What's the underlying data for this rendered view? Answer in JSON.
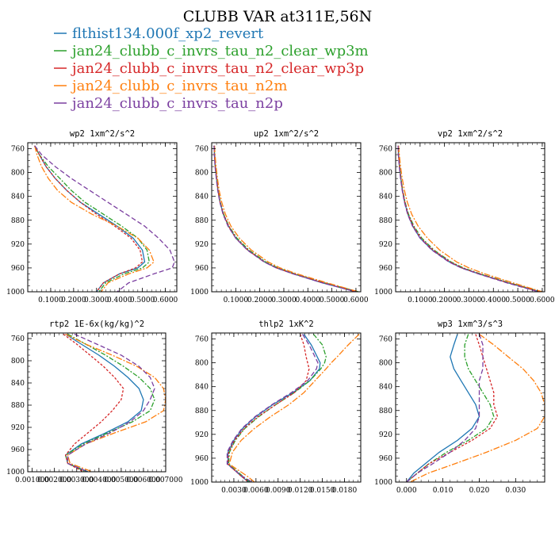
{
  "title": "CLUBB VAR at311E,56N",
  "colors": [
    "#1f77b4",
    "#2ca02c",
    "#d62728",
    "#ff7f0e",
    "#7b3fa0"
  ],
  "legend": [
    {
      "label": "flthist134.000f_xp2_revert",
      "color": "#1f77b4",
      "dash": ""
    },
    {
      "label": "jan24_clubb_c_invrs_tau_n2_clear_wp3m",
      "color": "#2ca02c",
      "dash": "6,2,2,2"
    },
    {
      "label": "jan24_clubb_c_invrs_tau_n2_clear_wp3p",
      "color": "#d62728",
      "dash": "3,2"
    },
    {
      "label": "jan24_clubb_c_invrs_tau_n2m",
      "color": "#ff7f0e",
      "dash": "8,2,2,2"
    },
    {
      "label": "jan24_clubb_c_invrs_tau_n2p",
      "color": "#7b3fa0",
      "dash": "6,3"
    }
  ],
  "chart_data": [
    {
      "type": "line",
      "title": "wp2  1xm^2/s^2",
      "xlim": [
        0,
        0.65
      ],
      "ylim": [
        1000,
        750
      ],
      "grid": false,
      "xticks": [
        "0.1000",
        "0.2000",
        "0.3000",
        "0.4000",
        "0.5000",
        "0.6000"
      ],
      "xtick_values": [
        0.1,
        0.2,
        0.3,
        0.4,
        0.5,
        0.6
      ],
      "yticks": [
        760,
        800,
        840,
        880,
        920,
        960,
        1000
      ],
      "y": [
        755,
        770,
        790,
        810,
        830,
        850,
        870,
        890,
        910,
        930,
        950,
        960,
        970,
        985,
        1000
      ],
      "series": [
        {
          "name": "flthist134.000f_xp2_revert",
          "values": [
            0.03,
            0.05,
            0.08,
            0.12,
            0.17,
            0.23,
            0.31,
            0.39,
            0.46,
            0.5,
            0.51,
            0.48,
            0.4,
            0.33,
            0.3
          ]
        },
        {
          "name": "jan24_clubb_c_invrs_tau_n2_clear_wp3m",
          "values": [
            0.03,
            0.05,
            0.09,
            0.14,
            0.19,
            0.25,
            0.33,
            0.41,
            0.48,
            0.52,
            0.53,
            0.5,
            0.42,
            0.34,
            0.31
          ]
        },
        {
          "name": "jan24_clubb_c_invrs_tau_n2_clear_wp3p",
          "values": [
            0.03,
            0.05,
            0.08,
            0.12,
            0.17,
            0.23,
            0.3,
            0.38,
            0.45,
            0.49,
            0.5,
            0.47,
            0.4,
            0.33,
            0.3
          ]
        },
        {
          "name": "jan24_clubb_c_invrs_tau_n2m",
          "values": [
            0.03,
            0.04,
            0.06,
            0.09,
            0.13,
            0.19,
            0.28,
            0.39,
            0.48,
            0.53,
            0.55,
            0.52,
            0.44,
            0.35,
            0.32
          ]
        },
        {
          "name": "jan24_clubb_c_invrs_tau_n2p",
          "values": [
            0.03,
            0.06,
            0.12,
            0.19,
            0.27,
            0.35,
            0.43,
            0.51,
            0.57,
            0.62,
            0.64,
            0.63,
            0.55,
            0.44,
            0.39
          ]
        }
      ]
    },
    {
      "type": "line",
      "title": "up2  1xm^2/s^2",
      "xlim": [
        0,
        0.62
      ],
      "ylim": [
        1000,
        750
      ],
      "grid": false,
      "xticks": [
        "0.1000",
        "0.2000",
        "0.3000",
        "0.4000",
        "0.5000",
        "0.6000"
      ],
      "xtick_values": [
        0.1,
        0.2,
        0.3,
        0.4,
        0.5,
        0.6
      ],
      "yticks": [
        760,
        800,
        840,
        880,
        920,
        960,
        1000
      ],
      "y": [
        755,
        770,
        790,
        810,
        830,
        850,
        870,
        890,
        910,
        930,
        950,
        960,
        970,
        985,
        1000
      ],
      "series": [
        {
          "name": "flthist134.000f_xp2_revert",
          "values": [
            0.01,
            0.012,
            0.015,
            0.02,
            0.026,
            0.035,
            0.048,
            0.07,
            0.1,
            0.15,
            0.22,
            0.27,
            0.34,
            0.46,
            0.6
          ]
        },
        {
          "name": "jan24_clubb_c_invrs_tau_n2_clear_wp3m",
          "values": [
            0.01,
            0.012,
            0.015,
            0.02,
            0.027,
            0.036,
            0.05,
            0.072,
            0.105,
            0.155,
            0.225,
            0.275,
            0.345,
            0.47,
            0.61
          ]
        },
        {
          "name": "jan24_clubb_c_invrs_tau_n2_clear_wp3p",
          "values": [
            0.01,
            0.012,
            0.015,
            0.02,
            0.026,
            0.035,
            0.049,
            0.071,
            0.1,
            0.15,
            0.22,
            0.27,
            0.34,
            0.465,
            0.6
          ]
        },
        {
          "name": "jan24_clubb_c_invrs_tau_n2m",
          "values": [
            0.012,
            0.014,
            0.018,
            0.024,
            0.031,
            0.042,
            0.057,
            0.08,
            0.115,
            0.165,
            0.235,
            0.285,
            0.355,
            0.48,
            0.61
          ]
        },
        {
          "name": "jan24_clubb_c_invrs_tau_n2p",
          "values": [
            0.01,
            0.011,
            0.014,
            0.019,
            0.025,
            0.034,
            0.047,
            0.068,
            0.1,
            0.148,
            0.218,
            0.268,
            0.338,
            0.46,
            0.6
          ]
        }
      ]
    },
    {
      "type": "line",
      "title": "vp2  1xm^2/s^2",
      "xlim": [
        0,
        0.61
      ],
      "ylim": [
        1000,
        750
      ],
      "grid": false,
      "xticks": [
        "0.1000",
        "0.2000",
        "0.3000",
        "0.4000",
        "0.5000",
        "0.6000"
      ],
      "xtick_values": [
        0.1,
        0.2,
        0.3,
        0.4,
        0.5,
        0.6
      ],
      "yticks": [
        760,
        800,
        840,
        880,
        920,
        960,
        1000
      ],
      "y": [
        755,
        770,
        790,
        810,
        830,
        850,
        870,
        890,
        910,
        930,
        950,
        960,
        970,
        985,
        1000
      ],
      "series": [
        {
          "name": "flthist134.000f_xp2_revert",
          "values": [
            0.01,
            0.012,
            0.016,
            0.021,
            0.028,
            0.037,
            0.05,
            0.07,
            0.1,
            0.15,
            0.22,
            0.27,
            0.34,
            0.46,
            0.59
          ]
        },
        {
          "name": "jan24_clubb_c_invrs_tau_n2_clear_wp3m",
          "values": [
            0.01,
            0.012,
            0.016,
            0.022,
            0.029,
            0.039,
            0.053,
            0.075,
            0.107,
            0.157,
            0.227,
            0.277,
            0.347,
            0.465,
            0.595
          ]
        },
        {
          "name": "jan24_clubb_c_invrs_tau_n2_clear_wp3p",
          "values": [
            0.01,
            0.012,
            0.016,
            0.021,
            0.028,
            0.038,
            0.051,
            0.072,
            0.103,
            0.153,
            0.223,
            0.273,
            0.343,
            0.46,
            0.59
          ]
        },
        {
          "name": "jan24_clubb_c_invrs_tau_n2m",
          "values": [
            0.012,
            0.015,
            0.02,
            0.027,
            0.036,
            0.048,
            0.066,
            0.092,
            0.13,
            0.18,
            0.25,
            0.3,
            0.365,
            0.48,
            0.6
          ]
        },
        {
          "name": "jan24_clubb_c_invrs_tau_n2p",
          "values": [
            0.01,
            0.011,
            0.015,
            0.02,
            0.027,
            0.036,
            0.049,
            0.069,
            0.1,
            0.148,
            0.218,
            0.268,
            0.338,
            0.455,
            0.585
          ]
        }
      ]
    },
    {
      "type": "line",
      "title": "rtp2  1E-6x(kg/kg)^2",
      "xlim": [
        0.0008,
        0.007
      ],
      "ylim": [
        1000,
        750
      ],
      "grid": false,
      "xticks": [
        "0.001000",
        "0.002000",
        "0.003000",
        "0.004000",
        "0.005000",
        "0.006000",
        "0.007000"
      ],
      "xtick_values": [
        0.001,
        0.002,
        0.003,
        0.004,
        0.005,
        0.006,
        0.007
      ],
      "yticks": [
        760,
        800,
        840,
        880,
        920,
        960,
        1000
      ],
      "y": [
        752,
        770,
        790,
        810,
        830,
        850,
        870,
        890,
        910,
        930,
        950,
        970,
        985,
        1000
      ],
      "series": [
        {
          "name": "flthist134.000f_xp2_revert",
          "values": [
            0.0025,
            0.0032,
            0.004,
            0.0047,
            0.0053,
            0.0058,
            0.006,
            0.0059,
            0.0053,
            0.0043,
            0.0032,
            0.0025,
            0.0026,
            0.0035
          ]
        },
        {
          "name": "jan24_clubb_c_invrs_tau_n2_clear_wp3m",
          "values": [
            0.0026,
            0.0034,
            0.0043,
            0.0051,
            0.0058,
            0.0063,
            0.0065,
            0.0063,
            0.0055,
            0.0044,
            0.0033,
            0.0025,
            0.0026,
            0.0034
          ]
        },
        {
          "name": "jan24_clubb_c_invrs_tau_n2_clear_wp3p",
          "values": [
            0.0024,
            0.003,
            0.0036,
            0.0042,
            0.0047,
            0.0051,
            0.005,
            0.0046,
            0.0041,
            0.0035,
            0.0029,
            0.0025,
            0.0026,
            0.0033
          ]
        },
        {
          "name": "jan24_clubb_c_invrs_tau_n2m",
          "values": [
            0.0025,
            0.0034,
            0.0046,
            0.0057,
            0.0065,
            0.0069,
            0.007,
            0.0069,
            0.0061,
            0.0047,
            0.0034,
            0.0026,
            0.0027,
            0.0037
          ]
        },
        {
          "name": "jan24_clubb_c_invrs_tau_n2p",
          "values": [
            0.0029,
            0.0039,
            0.005,
            0.0058,
            0.0063,
            0.0065,
            0.0063,
            0.006,
            0.0054,
            0.0045,
            0.0034,
            0.0026,
            0.0026,
            0.0035
          ]
        }
      ]
    },
    {
      "type": "line",
      "title": "thlp2  1xK^2",
      "xlim": [
        0,
        0.0202
      ],
      "ylim": [
        1000,
        750
      ],
      "grid": false,
      "xticks": [
        "0.0030",
        "0.0060",
        "0.0090",
        "0.0120",
        "0.0150",
        "0.0180"
      ],
      "xtick_values": [
        0.003,
        0.006,
        0.009,
        0.012,
        0.015,
        0.018
      ],
      "yticks": [
        760,
        800,
        840,
        880,
        920,
        960,
        1000
      ],
      "y": [
        752,
        770,
        790,
        800,
        810,
        830,
        850,
        870,
        890,
        910,
        930,
        950,
        970,
        990,
        1000
      ],
      "series": [
        {
          "name": "flthist134.000f_xp2_revert",
          "values": [
            0.0125,
            0.0135,
            0.0143,
            0.0147,
            0.0146,
            0.0133,
            0.011,
            0.0083,
            0.006,
            0.0042,
            0.003,
            0.0022,
            0.0022,
            0.004,
            0.005
          ]
        },
        {
          "name": "jan24_clubb_c_invrs_tau_n2_clear_wp3m",
          "values": [
            0.0138,
            0.015,
            0.0155,
            0.0153,
            0.0148,
            0.0133,
            0.0112,
            0.0087,
            0.0064,
            0.0045,
            0.0032,
            0.0024,
            0.0023,
            0.0042,
            0.0052
          ]
        },
        {
          "name": "jan24_clubb_c_invrs_tau_n2_clear_wp3p",
          "values": [
            0.012,
            0.0125,
            0.0128,
            0.013,
            0.0132,
            0.0128,
            0.0112,
            0.0087,
            0.0063,
            0.0044,
            0.0031,
            0.0023,
            0.0022,
            0.004,
            0.005
          ]
        },
        {
          "name": "jan24_clubb_c_invrs_tau_n2m",
          "values": [
            0.02,
            0.0185,
            0.017,
            0.0162,
            0.0155,
            0.014,
            0.0125,
            0.0105,
            0.008,
            0.0058,
            0.004,
            0.0028,
            0.0024,
            0.0048,
            0.0058
          ]
        },
        {
          "name": "jan24_clubb_c_invrs_tau_n2p",
          "values": [
            0.0123,
            0.0132,
            0.014,
            0.0144,
            0.0142,
            0.013,
            0.0108,
            0.0082,
            0.0059,
            0.0041,
            0.0029,
            0.0021,
            0.0021,
            0.0041,
            0.0055
          ]
        }
      ]
    },
    {
      "type": "line",
      "title": "wp3  1xm^3/s^3",
      "xlim": [
        -0.003,
        0.038
      ],
      "ylim": [
        1000,
        750
      ],
      "grid": false,
      "xticks": [
        "0.000",
        "0.010",
        "0.020",
        "0.030"
      ],
      "xtick_values": [
        0,
        0.01,
        0.02,
        0.03
      ],
      "yticks": [
        760,
        800,
        840,
        880,
        920,
        960,
        1000
      ],
      "y": [
        752,
        770,
        790,
        810,
        830,
        850,
        870,
        890,
        910,
        930,
        950,
        970,
        985,
        1000
      ],
      "series": [
        {
          "name": "flthist134.000f_xp2_revert",
          "values": [
            0.014,
            0.013,
            0.012,
            0.013,
            0.015,
            0.017,
            0.019,
            0.02,
            0.018,
            0.014,
            0.009,
            0.005,
            0.002,
            0.0
          ]
        },
        {
          "name": "jan24_clubb_c_invrs_tau_n2_clear_wp3m",
          "values": [
            0.017,
            0.016,
            0.016,
            0.017,
            0.019,
            0.021,
            0.023,
            0.024,
            0.022,
            0.017,
            0.011,
            0.006,
            0.003,
            0.0
          ]
        },
        {
          "name": "jan24_clubb_c_invrs_tau_n2_clear_wp3p",
          "values": [
            0.019,
            0.02,
            0.021,
            0.022,
            0.023,
            0.024,
            0.024,
            0.025,
            0.023,
            0.018,
            0.012,
            0.006,
            0.003,
            0.0
          ]
        },
        {
          "name": "jan24_clubb_c_invrs_tau_n2m",
          "values": [
            0.02,
            0.024,
            0.028,
            0.032,
            0.035,
            0.037,
            0.038,
            0.038,
            0.036,
            0.03,
            0.022,
            0.013,
            0.006,
            0.001
          ]
        },
        {
          "name": "jan24_clubb_c_invrs_tau_n2p",
          "values": [
            0.02,
            0.021,
            0.021,
            0.021,
            0.02,
            0.02,
            0.02,
            0.02,
            0.019,
            0.016,
            0.012,
            0.007,
            0.003,
            0.0
          ]
        }
      ]
    }
  ]
}
